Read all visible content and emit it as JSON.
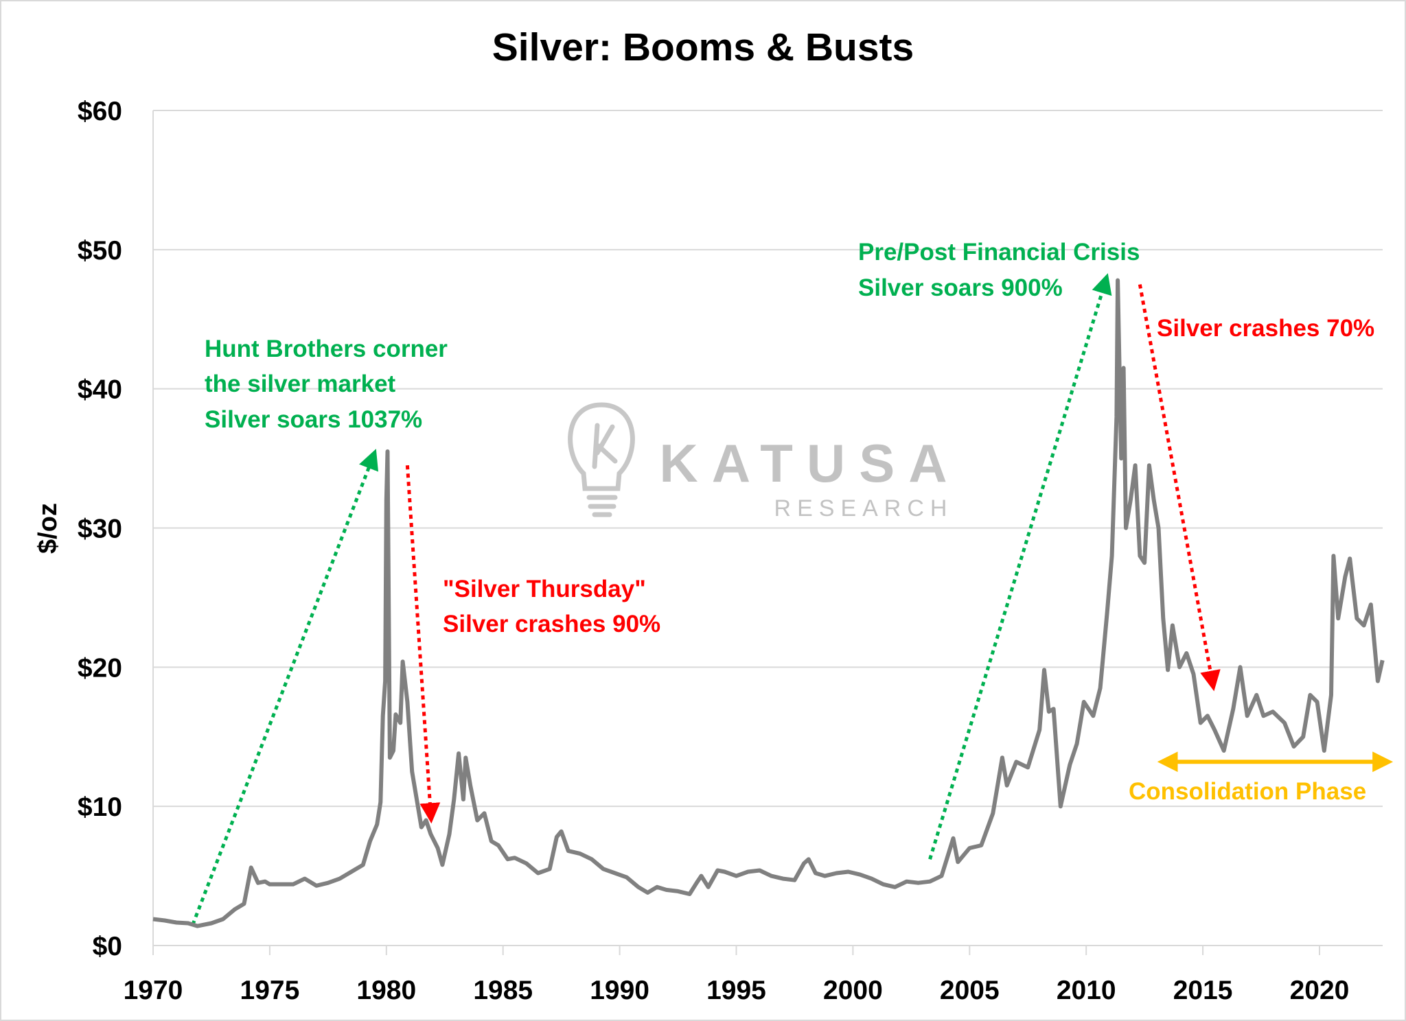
{
  "chart_data": {
    "type": "line",
    "title": "Silver: Booms & Busts",
    "xlabel": "",
    "ylabel": "$/oz",
    "xlim": [
      1970,
      2022.8
    ],
    "ylim": [
      0,
      60
    ],
    "grid": true,
    "x_ticks": [
      1970,
      1975,
      1980,
      1985,
      1990,
      1995,
      2000,
      2005,
      2010,
      2015,
      2020
    ],
    "x_tick_labels": [
      "1970",
      "1975",
      "1980",
      "1985",
      "1990",
      "1995",
      "2000",
      "2005",
      "2010",
      "2015",
      "2020"
    ],
    "y_ticks": [
      0,
      10,
      20,
      30,
      40,
      50,
      60
    ],
    "y_tick_labels": [
      "$0",
      "$10",
      "$20",
      "$30",
      "$40",
      "$50",
      "$60"
    ],
    "series": [
      {
        "name": "Silver price",
        "color": "#808080",
        "points": [
          [
            1970.0,
            1.9
          ],
          [
            1970.5,
            1.8
          ],
          [
            1971.0,
            1.65
          ],
          [
            1971.5,
            1.6
          ],
          [
            1971.9,
            1.4
          ],
          [
            1972.5,
            1.6
          ],
          [
            1973.0,
            1.9
          ],
          [
            1973.5,
            2.6
          ],
          [
            1973.9,
            3.0
          ],
          [
            1974.2,
            5.6
          ],
          [
            1974.5,
            4.5
          ],
          [
            1974.8,
            4.6
          ],
          [
            1975.0,
            4.4
          ],
          [
            1975.5,
            4.4
          ],
          [
            1976.0,
            4.4
          ],
          [
            1976.5,
            4.8
          ],
          [
            1977.0,
            4.3
          ],
          [
            1977.5,
            4.5
          ],
          [
            1978.0,
            4.8
          ],
          [
            1978.5,
            5.3
          ],
          [
            1979.0,
            5.8
          ],
          [
            1979.3,
            7.5
          ],
          [
            1979.6,
            8.7
          ],
          [
            1979.75,
            10.3
          ],
          [
            1979.85,
            16.5
          ],
          [
            1979.95,
            19.0
          ],
          [
            1980.0,
            32.0
          ],
          [
            1980.05,
            35.5
          ],
          [
            1980.15,
            13.5
          ],
          [
            1980.3,
            14.0
          ],
          [
            1980.4,
            16.6
          ],
          [
            1980.6,
            16.0
          ],
          [
            1980.7,
            20.4
          ],
          [
            1980.9,
            17.5
          ],
          [
            1981.1,
            12.5
          ],
          [
            1981.3,
            10.5
          ],
          [
            1981.5,
            8.5
          ],
          [
            1981.7,
            9.0
          ],
          [
            1981.9,
            8.0
          ],
          [
            1982.2,
            7.0
          ],
          [
            1982.4,
            5.8
          ],
          [
            1982.7,
            8.0
          ],
          [
            1982.9,
            10.5
          ],
          [
            1983.1,
            13.8
          ],
          [
            1983.3,
            10.5
          ],
          [
            1983.4,
            13.5
          ],
          [
            1983.6,
            11.5
          ],
          [
            1983.9,
            9.0
          ],
          [
            1984.2,
            9.5
          ],
          [
            1984.5,
            7.5
          ],
          [
            1984.8,
            7.2
          ],
          [
            1985.2,
            6.2
          ],
          [
            1985.5,
            6.3
          ],
          [
            1986.0,
            5.9
          ],
          [
            1986.5,
            5.2
          ],
          [
            1987.0,
            5.5
          ],
          [
            1987.3,
            7.8
          ],
          [
            1987.5,
            8.2
          ],
          [
            1987.8,
            6.8
          ],
          [
            1988.3,
            6.6
          ],
          [
            1988.8,
            6.2
          ],
          [
            1989.3,
            5.5
          ],
          [
            1989.8,
            5.2
          ],
          [
            1990.3,
            4.9
          ],
          [
            1990.8,
            4.2
          ],
          [
            1991.2,
            3.8
          ],
          [
            1991.6,
            4.2
          ],
          [
            1992.0,
            4.0
          ],
          [
            1992.5,
            3.9
          ],
          [
            1993.0,
            3.7
          ],
          [
            1993.3,
            4.5
          ],
          [
            1993.5,
            5.0
          ],
          [
            1993.8,
            4.2
          ],
          [
            1994.2,
            5.4
          ],
          [
            1994.5,
            5.3
          ],
          [
            1995.0,
            5.0
          ],
          [
            1995.5,
            5.3
          ],
          [
            1996.0,
            5.4
          ],
          [
            1996.5,
            5.0
          ],
          [
            1997.0,
            4.8
          ],
          [
            1997.5,
            4.7
          ],
          [
            1997.9,
            5.9
          ],
          [
            1998.1,
            6.2
          ],
          [
            1998.4,
            5.2
          ],
          [
            1998.8,
            5.0
          ],
          [
            1999.3,
            5.2
          ],
          [
            1999.8,
            5.3
          ],
          [
            2000.3,
            5.1
          ],
          [
            2000.8,
            4.8
          ],
          [
            2001.3,
            4.4
          ],
          [
            2001.8,
            4.2
          ],
          [
            2002.3,
            4.6
          ],
          [
            2002.8,
            4.5
          ],
          [
            2003.3,
            4.6
          ],
          [
            2003.8,
            5.0
          ],
          [
            2004.3,
            7.7
          ],
          [
            2004.5,
            6.0
          ],
          [
            2005.0,
            7.0
          ],
          [
            2005.5,
            7.2
          ],
          [
            2006.0,
            9.5
          ],
          [
            2006.4,
            13.5
          ],
          [
            2006.6,
            11.5
          ],
          [
            2007.0,
            13.2
          ],
          [
            2007.5,
            12.8
          ],
          [
            2008.0,
            15.5
          ],
          [
            2008.2,
            19.8
          ],
          [
            2008.4,
            16.8
          ],
          [
            2008.6,
            17.0
          ],
          [
            2008.9,
            10.0
          ],
          [
            2009.3,
            13.0
          ],
          [
            2009.6,
            14.5
          ],
          [
            2009.9,
            17.5
          ],
          [
            2010.3,
            16.5
          ],
          [
            2010.6,
            18.5
          ],
          [
            2010.9,
            24.0
          ],
          [
            2011.1,
            28.0
          ],
          [
            2011.3,
            38.0
          ],
          [
            2011.35,
            47.8
          ],
          [
            2011.5,
            35.0
          ],
          [
            2011.6,
            41.5
          ],
          [
            2011.7,
            30.0
          ],
          [
            2011.9,
            32.0
          ],
          [
            2012.1,
            34.5
          ],
          [
            2012.3,
            28.0
          ],
          [
            2012.5,
            27.5
          ],
          [
            2012.7,
            34.5
          ],
          [
            2012.9,
            32.0
          ],
          [
            2013.1,
            30.0
          ],
          [
            2013.3,
            23.5
          ],
          [
            2013.5,
            19.8
          ],
          [
            2013.7,
            23.0
          ],
          [
            2014.0,
            20.0
          ],
          [
            2014.3,
            21.0
          ],
          [
            2014.6,
            19.5
          ],
          [
            2014.9,
            16.0
          ],
          [
            2015.2,
            16.5
          ],
          [
            2015.5,
            15.5
          ],
          [
            2015.9,
            14.0
          ],
          [
            2016.3,
            17.0
          ],
          [
            2016.6,
            20.0
          ],
          [
            2016.9,
            16.5
          ],
          [
            2017.3,
            18.0
          ],
          [
            2017.6,
            16.5
          ],
          [
            2018.0,
            16.8
          ],
          [
            2018.5,
            16.0
          ],
          [
            2018.9,
            14.3
          ],
          [
            2019.3,
            15.0
          ],
          [
            2019.6,
            18.0
          ],
          [
            2019.9,
            17.5
          ],
          [
            2020.2,
            14.0
          ],
          [
            2020.5,
            18.0
          ],
          [
            2020.6,
            28.0
          ],
          [
            2020.8,
            23.5
          ],
          [
            2021.1,
            26.5
          ],
          [
            2021.3,
            27.8
          ],
          [
            2021.6,
            23.5
          ],
          [
            2021.9,
            23.0
          ],
          [
            2022.2,
            24.5
          ],
          [
            2022.5,
            19.0
          ],
          [
            2022.7,
            20.5
          ]
        ]
      }
    ],
    "annotations": [
      {
        "id": "hunt",
        "lines": [
          "Hunt Brothers corner",
          "the silver market",
          "Silver soars 1037%"
        ],
        "color": "#00B050"
      },
      {
        "id": "thursday",
        "lines": [
          "\"Silver Thursday\"",
          "Silver crashes 90%"
        ],
        "color": "#FF0000"
      },
      {
        "id": "gfc",
        "lines": [
          "Pre/Post Financial Crisis",
          "Silver soars 900%"
        ],
        "color": "#00B050"
      },
      {
        "id": "crash70",
        "lines": [
          "Silver crashes 70%"
        ],
        "color": "#FF0000"
      },
      {
        "id": "consolidation",
        "lines": [
          "Consolidation Phase"
        ],
        "color": "#FFC000"
      }
    ],
    "arrows": [
      {
        "from": [
          1971.7,
          1.5
        ],
        "to": [
          1979.4,
          35.0
        ],
        "color": "#00B050",
        "style": "dotted"
      },
      {
        "from": [
          1980.9,
          34.5
        ],
        "to": [
          1981.9,
          9.5
        ],
        "color": "#FF0000",
        "style": "dotted"
      },
      {
        "from": [
          2003.3,
          6.2
        ],
        "to": [
          2010.8,
          47.6
        ],
        "color": "#00B050",
        "style": "dotted"
      },
      {
        "from": [
          2012.3,
          47.5
        ],
        "to": [
          2015.4,
          19.0
        ],
        "color": "#FF0000",
        "style": "dotted"
      },
      {
        "from": [
          2013.4,
          13.2
        ],
        "to": [
          2022.8,
          13.2
        ],
        "color": "#FFC000",
        "style": "double"
      }
    ]
  },
  "watermark": {
    "brand": "KATUSA",
    "sub": "RESEARCH"
  }
}
